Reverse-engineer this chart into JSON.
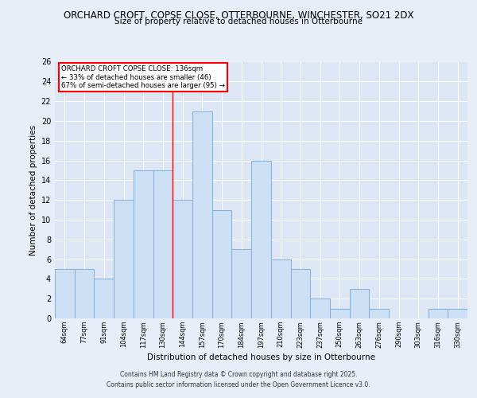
{
  "title": "ORCHARD CROFT, COPSE CLOSE, OTTERBOURNE, WINCHESTER, SO21 2DX",
  "subtitle": "Size of property relative to detached houses in Otterbourne",
  "xlabel": "Distribution of detached houses by size in Otterbourne",
  "ylabel": "Number of detached properties",
  "bar_labels": [
    "64sqm",
    "77sqm",
    "91sqm",
    "104sqm",
    "117sqm",
    "130sqm",
    "144sqm",
    "157sqm",
    "170sqm",
    "184sqm",
    "197sqm",
    "210sqm",
    "223sqm",
    "237sqm",
    "250sqm",
    "263sqm",
    "276sqm",
    "290sqm",
    "303sqm",
    "316sqm",
    "330sqm"
  ],
  "bar_values": [
    5,
    5,
    4,
    12,
    15,
    15,
    12,
    21,
    11,
    7,
    16,
    6,
    5,
    2,
    1,
    3,
    1,
    0,
    0,
    1,
    1
  ],
  "bar_color": "#ccdff5",
  "bar_edge_color": "#7fb0d8",
  "fig_background_color": "#e8eef8",
  "ax_background_color": "#dce6f5",
  "grid_color": "#ffffff",
  "ylim": [
    0,
    26
  ],
  "yticks": [
    0,
    2,
    4,
    6,
    8,
    10,
    12,
    14,
    16,
    18,
    20,
    22,
    24,
    26
  ],
  "annotation_box_text1": "ORCHARD CROFT COPSE CLOSE: 136sqm",
  "annotation_box_text2": "← 33% of detached houses are smaller (46)",
  "annotation_box_text3": "67% of semi-detached houses are larger (95) →",
  "red_line_bin_index": 5,
  "footer_line1": "Contains HM Land Registry data © Crown copyright and database right 2025.",
  "footer_line2": "Contains public sector information licensed under the Open Government Licence v3.0."
}
